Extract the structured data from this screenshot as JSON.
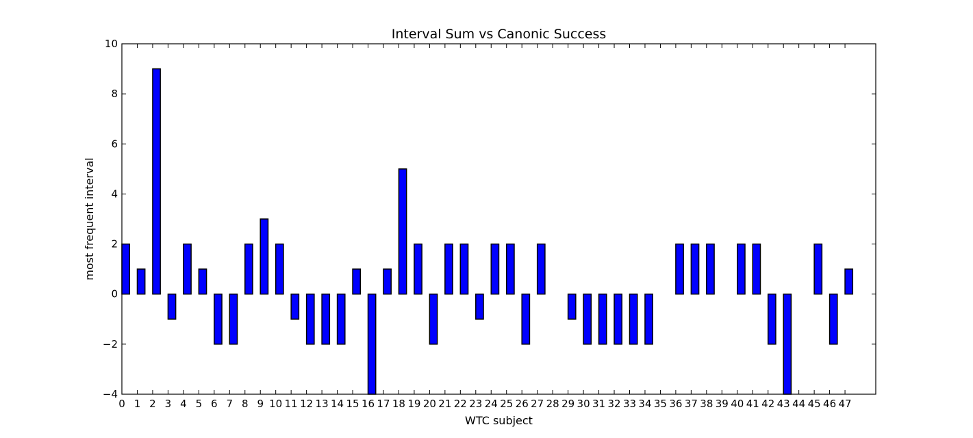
{
  "chart_data": {
    "type": "bar",
    "title": "Interval Sum vs Canonic Success",
    "xlabel": "WTC subject",
    "ylabel": "most frequent interval",
    "categories": [
      "0",
      "1",
      "2",
      "3",
      "4",
      "5",
      "6",
      "7",
      "8",
      "9",
      "10",
      "11",
      "12",
      "13",
      "14",
      "15",
      "16",
      "17",
      "18",
      "19",
      "20",
      "21",
      "22",
      "23",
      "24",
      "25",
      "26",
      "27",
      "28",
      "29",
      "30",
      "31",
      "32",
      "33",
      "34",
      "35",
      "36",
      "37",
      "38",
      "39",
      "40",
      "41",
      "42",
      "43",
      "44",
      "45",
      "46",
      "47"
    ],
    "values": [
      2,
      1,
      9,
      -1,
      2,
      1,
      -2,
      -2,
      2,
      3,
      2,
      -1,
      -2,
      -2,
      -2,
      1,
      -4,
      1,
      5,
      2,
      -2,
      2,
      2,
      -1,
      2,
      2,
      -2,
      2,
      0,
      -1,
      -2,
      -2,
      -2,
      -2,
      -2,
      0,
      2,
      2,
      2,
      0,
      2,
      2,
      -2,
      -4,
      0,
      2,
      -2,
      1
    ],
    "ylim": [
      -4,
      10
    ],
    "yticks": [
      "−4",
      "−2",
      "0",
      "2",
      "4",
      "6",
      "8",
      "10"
    ],
    "xlim": [
      0,
      49
    ],
    "grid": false,
    "colors": {
      "bar": "#0000ff",
      "edge": "#000000"
    }
  }
}
